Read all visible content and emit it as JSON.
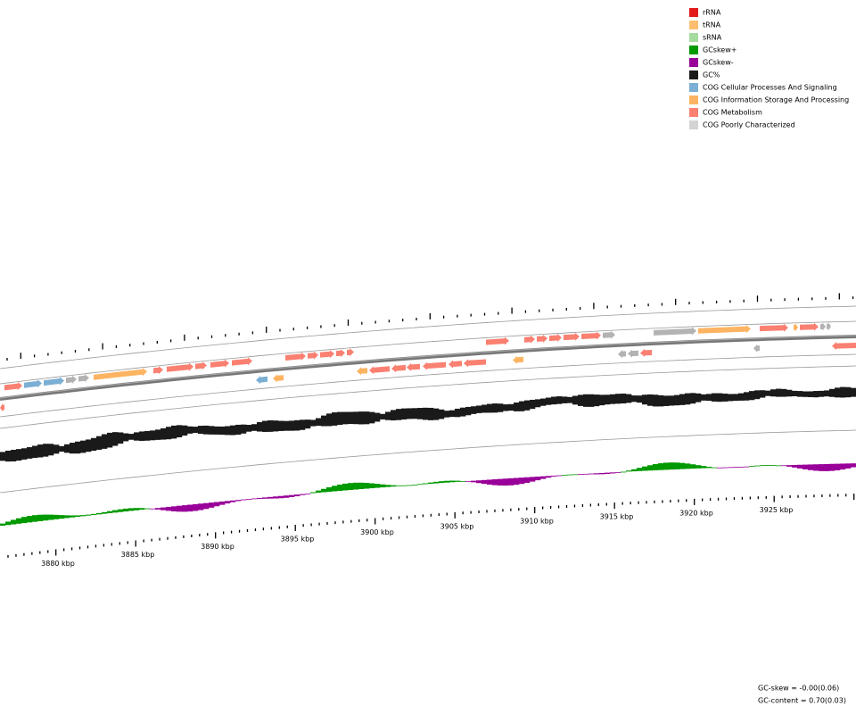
{
  "legend": [
    {
      "label": "rRNA",
      "color": "#e31a1c"
    },
    {
      "label": "tRNA",
      "color": "#fdbf6f"
    },
    {
      "label": "sRNA",
      "color": "#a6dba0"
    },
    {
      "label": "GCskew+",
      "color": "#009900"
    },
    {
      "label": "GCskew-",
      "color": "#990099"
    },
    {
      "label": "GC%",
      "color": "#1a1a1a"
    },
    {
      "label": "COG Cellular Processes And Signaling",
      "color": "#7bafd4"
    },
    {
      "label": "COG Information Storage And Processing",
      "color": "#fdb462"
    },
    {
      "label": "COG Metabolism",
      "color": "#fa8072"
    },
    {
      "label": "COG Poorly Characterized",
      "color": "#d3d3d3"
    }
  ],
  "scale_labels": [
    "3880 kbp",
    "3885 kbp",
    "3890 kbp",
    "3895 kbp",
    "3900 kbp",
    "3905 kbp",
    "3910 kbp",
    "3915 kbp",
    "3920 kbp",
    "3925 kbp"
  ],
  "footer": {
    "gc_skew": "GC-skew = -0.00(0.06)",
    "gc_content": "GC-content = 0.70(0.03)"
  }
}
